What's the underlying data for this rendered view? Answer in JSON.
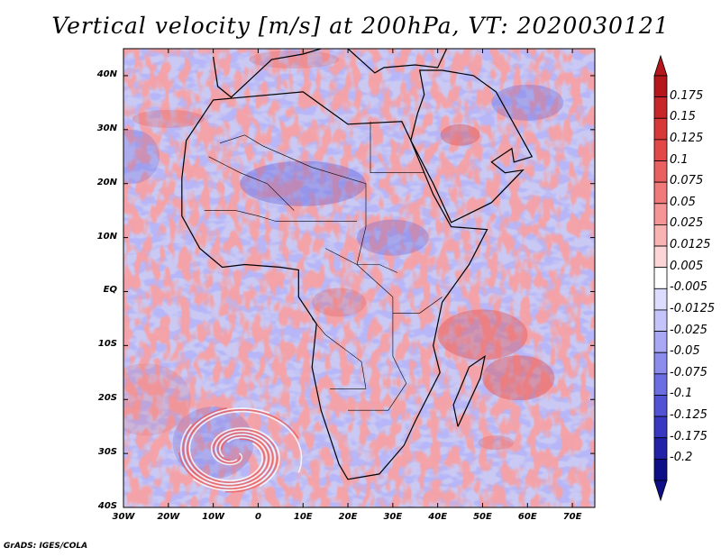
{
  "title": "Vertical velocity [m/s] at 200hPa, VT: 2020030121",
  "footer": "GrADS: IGES/COLA",
  "map": {
    "lat_labels": [
      "40N",
      "30N",
      "20N",
      "10N",
      "EQ",
      "10S",
      "20S",
      "30S",
      "40S"
    ],
    "lat_values": [
      40,
      30,
      20,
      10,
      0,
      -10,
      -20,
      -30,
      -40
    ],
    "lon_labels": [
      "30W",
      "20W",
      "10W",
      "0",
      "10E",
      "20E",
      "30E",
      "40E",
      "50E",
      "60E",
      "70E"
    ],
    "lon_values": [
      -30,
      -20,
      -10,
      0,
      10,
      20,
      30,
      40,
      50,
      60,
      70
    ],
    "lat_range": [
      -40,
      45
    ],
    "lon_range": [
      -30,
      75
    ]
  },
  "colorbar": {
    "labels": [
      "0.175",
      "0.15",
      "0.125",
      "0.1",
      "0.075",
      "0.05",
      "0.025",
      "0.0125",
      "0.005",
      "-0.005",
      "-0.0125",
      "-0.025",
      "-0.05",
      "-0.075",
      "-0.1",
      "-0.125",
      "-0.175",
      "-0.2"
    ],
    "colors": [
      "#b5161c",
      "#c8272a",
      "#d73838",
      "#e34848",
      "#ea5f5f",
      "#f07a7a",
      "#f59595",
      "#f9b3b3",
      "#fcd6d6",
      "#ffffff",
      "#dcdcff",
      "#c4c4fa",
      "#a8a8f4",
      "#8c8cec",
      "#6d6de2",
      "#5252d4",
      "#3838c2",
      "#2222a8",
      "#0e0e86"
    ],
    "top_color": "#b5161c",
    "bottom_color": "#0e0e86"
  }
}
